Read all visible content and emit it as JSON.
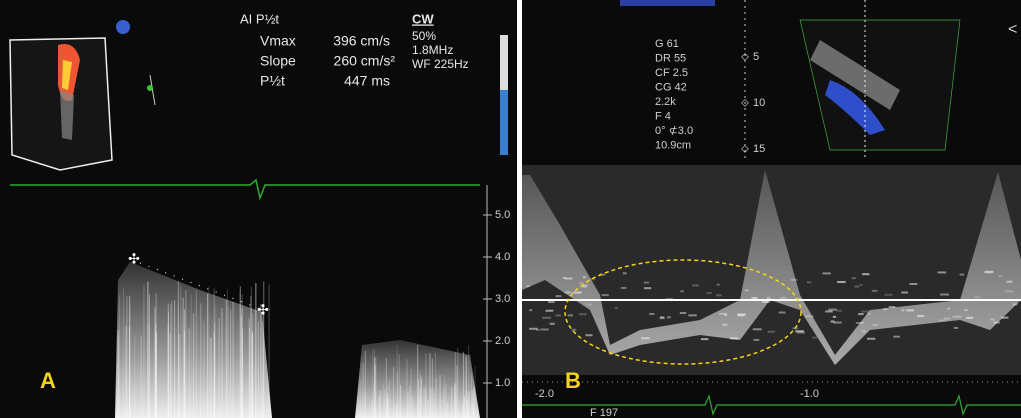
{
  "panel_a": {
    "label": "A",
    "measure_title": "AI P½t",
    "measurements": [
      [
        "Vmax",
        "396 cm/s"
      ],
      [
        "Slope",
        "260 cm/s²"
      ],
      [
        "P½t",
        "447 ms"
      ]
    ],
    "mode": "CW",
    "settings": [
      "50%",
      "1.8MHz",
      "WF 225Hz"
    ],
    "scale": [
      "5.0",
      "4.0",
      "3.0",
      "2.0",
      "1.0"
    ]
  },
  "panel_b": {
    "label": "B",
    "settings": [
      "G 61",
      "DR 55",
      "CF 2.5",
      "CG 42",
      "2.2k",
      "F 4",
      "0°  ⊄3.0",
      "10.9cm"
    ],
    "depth": [
      "5",
      "10",
      "15"
    ],
    "scale": [
      "-2.0",
      "-1.0"
    ],
    "footer": "F 197"
  }
}
